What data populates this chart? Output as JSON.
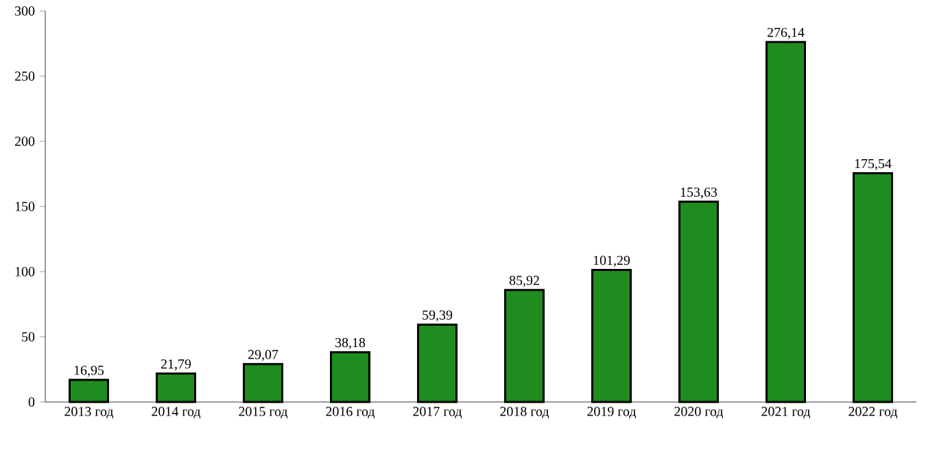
{
  "chart_data": {
    "type": "bar",
    "categories": [
      "2013 год",
      "2014 год",
      "2015 год",
      "2016 год",
      "2017 год",
      "2018 год",
      "2019 год",
      "2020 год",
      "2021 год",
      "2022 год"
    ],
    "values": [
      16.95,
      21.79,
      29.07,
      38.18,
      59.39,
      85.92,
      101.29,
      153.63,
      276.14,
      175.54
    ],
    "value_labels": [
      "16,95",
      "21,79",
      "29,07",
      "38,18",
      "59,39",
      "85,92",
      "101,29",
      "153,63",
      "276,14",
      "175,54"
    ],
    "color": "#1e8c1e",
    "ylim": [
      0,
      300
    ],
    "yticks": [
      0,
      50,
      100,
      150,
      200,
      250,
      300
    ]
  }
}
